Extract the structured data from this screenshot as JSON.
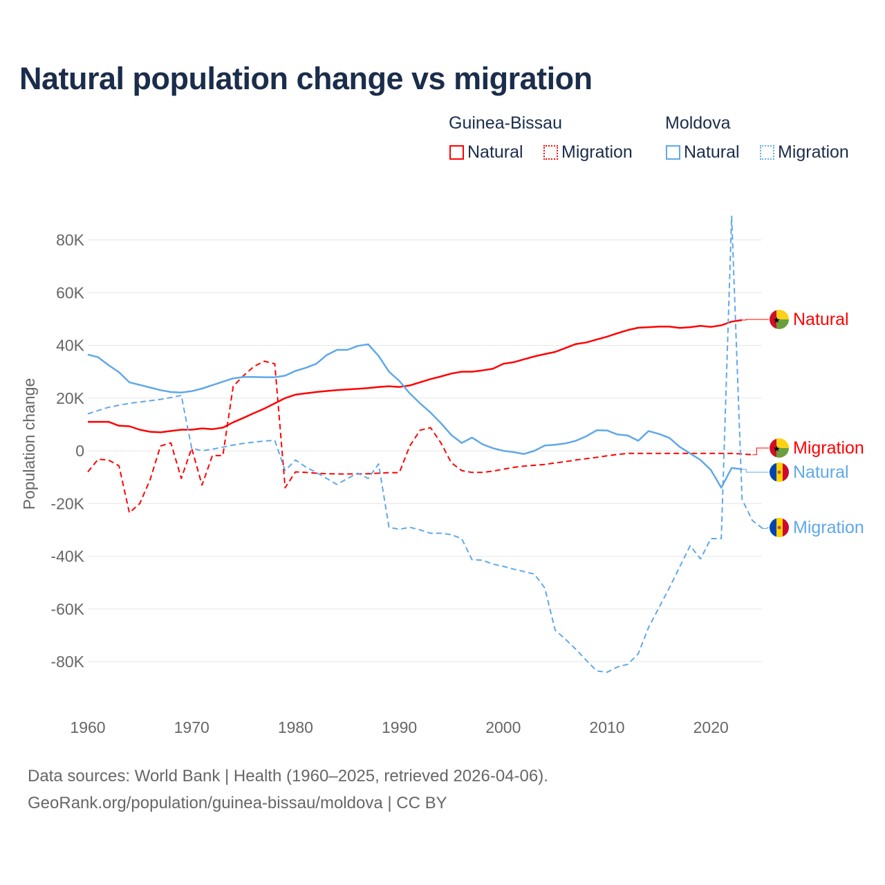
{
  "chart_data": {
    "type": "line",
    "title": "Natural population change vs migration",
    "ylabel": "Population change",
    "xlabel": "",
    "ylim": [
      -100000,
      92000
    ],
    "xlim": [
      1960,
      2025
    ],
    "grid": true,
    "legend_placement": "top-right",
    "x_ticks": [
      "1960",
      "1970",
      "1980",
      "1990",
      "2000",
      "2010",
      "2020"
    ],
    "y_ticks": [
      {
        "v": 80,
        "label": "80K"
      },
      {
        "v": 60,
        "label": "60K"
      },
      {
        "v": 40,
        "label": "40K"
      },
      {
        "v": 20,
        "label": "20K"
      },
      {
        "v": 0,
        "label": "0"
      },
      {
        "v": -20,
        "label": "-20K"
      },
      {
        "v": -40,
        "label": "-40K"
      },
      {
        "v": -60,
        "label": "-60K"
      },
      {
        "v": -80,
        "label": "-80K"
      }
    ],
    "legend": {
      "groups": [
        {
          "country": "Guinea-Bissau",
          "items": [
            "Natural",
            "Migration"
          ]
        },
        {
          "country": "Moldova",
          "items": [
            "Natural",
            "Migration"
          ]
        }
      ]
    },
    "series": [
      {
        "name": "Natural",
        "country": "Guinea-Bissau",
        "color": "#ff0000",
        "dash": false,
        "start": 1960,
        "values_thousands": [
          11,
          11,
          11,
          9.5,
          9.3,
          8,
          7.2,
          7,
          7.5,
          8,
          8,
          8.5,
          8.2,
          8.8,
          10.8,
          12.5,
          14.3,
          16,
          18,
          20,
          21.3,
          21.8,
          22.3,
          22.7,
          23,
          23.3,
          23.5,
          23.8,
          24.2,
          24.5,
          24.2,
          24.8,
          26,
          27.2,
          28.2,
          29.3,
          30,
          30,
          30.5,
          31.1,
          33,
          33.6,
          34.7,
          35.8,
          36.7,
          37.5,
          39,
          40.5,
          41.1,
          42.2,
          43.3,
          44.6,
          45.8,
          46.7,
          46.9,
          47.1,
          47.1,
          46.6,
          46.9,
          47.4,
          47,
          47.6,
          49,
          49.6
        ]
      },
      {
        "name": "Migration",
        "country": "Guinea-Bissau",
        "color": "#ff0000",
        "dash": true,
        "start": 1960,
        "values_thousands": [
          -8,
          -3.2,
          -3.5,
          -5.7,
          -23.5,
          -20,
          -11,
          1.8,
          3,
          -10.5,
          1,
          -13,
          -1.8,
          -1.8,
          24.5,
          28.5,
          32,
          34,
          33,
          -14,
          -8,
          -8.2,
          -8.5,
          -8.7,
          -8.8,
          -8.8,
          -8.8,
          -8.7,
          -8.5,
          -8.3,
          -8.3,
          1.8,
          7.8,
          8.8,
          3,
          -4.5,
          -7.5,
          -8.2,
          -8.2,
          -7.7,
          -7,
          -6.3,
          -5.8,
          -5.5,
          -5.2,
          -4.6,
          -4.1,
          -3.5,
          -3,
          -2.5,
          -1.9,
          -1.4,
          -1,
          -1,
          -1,
          -1,
          -1,
          -1,
          -1,
          -1,
          -1,
          -1,
          -1,
          -1.2,
          -1.5
        ]
      },
      {
        "name": "Natural",
        "country": "Moldova",
        "color": "#5fa8e8",
        "dash": false,
        "start": 1960,
        "values_thousands": [
          36.5,
          35.5,
          32.5,
          29.8,
          26,
          25,
          24,
          23,
          22.3,
          22.1,
          22.6,
          23.6,
          24.9,
          26.2,
          27.5,
          28,
          28,
          27.9,
          27.9,
          28.5,
          30.3,
          31.5,
          33,
          36.3,
          38.3,
          38.3,
          39.8,
          40.4,
          36,
          30,
          26.5,
          21.8,
          18,
          14.5,
          10.5,
          6,
          3,
          5,
          2.5,
          1,
          0,
          -0.5,
          -1.2,
          0,
          2,
          2.3,
          2.8,
          3.8,
          5.5,
          7.8,
          7.7,
          6.2,
          5.8,
          3.8,
          7.5,
          6.4,
          4.9,
          1.5,
          -1,
          -3.5,
          -7.3,
          -14,
          -6.5,
          -7
        ]
      },
      {
        "name": "Migration",
        "country": "Moldova",
        "color": "#5fa8e8",
        "dash": true,
        "start": 1960,
        "values_thousands": [
          14,
          15.3,
          16.5,
          17.3,
          18,
          18.5,
          19,
          19.5,
          20.2,
          21,
          1,
          0,
          0.6,
          1.4,
          2.2,
          2.8,
          3.3,
          3.7,
          4,
          -7.5,
          -3.5,
          -6.2,
          -8.2,
          -10.5,
          -12.8,
          -10.5,
          -8.5,
          -10.5,
          -5,
          -29,
          -29.8,
          -29,
          -30,
          -31.3,
          -31.3,
          -31.8,
          -33.3,
          -41.3,
          -41.5,
          -43,
          -43.8,
          -44.9,
          -45.8,
          -46.8,
          -52,
          -68,
          -71.5,
          -75.3,
          -79.5,
          -83.5,
          -84,
          -82,
          -81,
          -77,
          -67,
          -59.5,
          -52,
          -44,
          -36,
          -41,
          -33.3,
          -33.3,
          89,
          -18.5,
          -26.5,
          -29.5
        ]
      }
    ],
    "end_labels": [
      {
        "text": "Natural",
        "country": "Guinea-Bissau",
        "color": "#ff0000",
        "at": 49.6
      },
      {
        "text": "Migration",
        "country": "Guinea-Bissau",
        "color": "#ff0000",
        "at": 0.5
      },
      {
        "text": "Natural",
        "country": "Moldova",
        "color": "#5fa8e8",
        "at": -8.3
      },
      {
        "text": "Migration",
        "country": "Moldova",
        "color": "#5fa8e8",
        "at": -29.5
      }
    ]
  },
  "footer": {
    "line1": "Data sources: World Bank | Health (1960–2025, retrieved 2026-04-06).",
    "line2": "GeoRank.org/population/guinea-bissau/moldova | CC BY"
  }
}
